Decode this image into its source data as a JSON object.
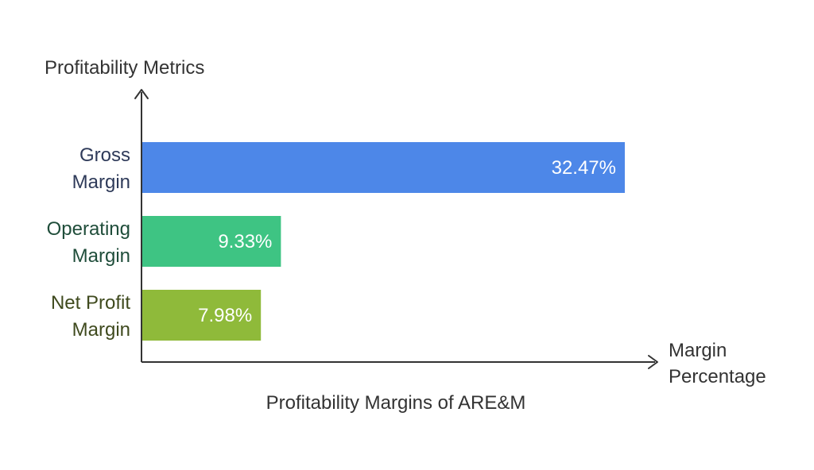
{
  "chart_data": {
    "type": "bar",
    "orientation": "horizontal",
    "title": "Profitability Margins of ARE&M",
    "ylabel": "Profitability Metrics",
    "xlabel": [
      "Margin",
      "Percentage"
    ],
    "categories": [
      [
        "Gross",
        "Margin"
      ],
      [
        "Operating",
        "Margin"
      ],
      [
        "Net Profit",
        "Margin"
      ]
    ],
    "values": [
      32.47,
      9.33,
      7.98
    ],
    "value_labels": [
      "32.47%",
      "9.33%",
      "7.98%"
    ],
    "colors": [
      "#4D87E8",
      "#3EC483",
      "#8FBA3A"
    ],
    "category_label_colors": [
      "#2E3A59",
      "#1F4D3A",
      "#3F4A1E"
    ],
    "grid": false,
    "legend": "none"
  }
}
